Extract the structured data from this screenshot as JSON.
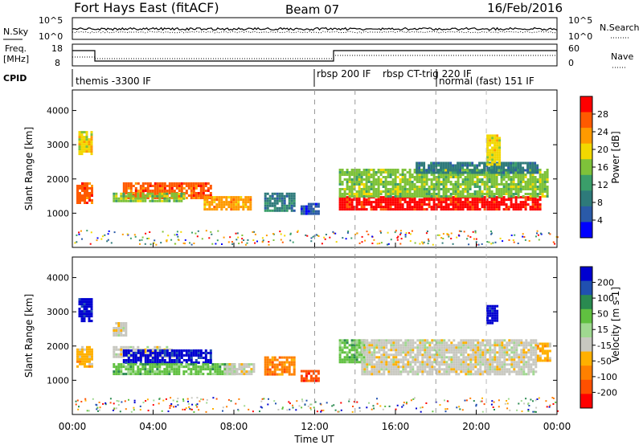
{
  "header": {
    "station": "Fort Hays East (fitACF)",
    "beam": "Beam 07",
    "date": "16/Feb/2016"
  },
  "panels": {
    "nsky": {
      "left_label": "N.Sky",
      "right_label": "N.Search",
      "tick_high": "10^5",
      "tick_low": "10^0"
    },
    "freq": {
      "left_label_1": "Freq.",
      "left_label_2": "[MHz]",
      "right_label": "Nave",
      "left_ticks": [
        "18",
        "8"
      ],
      "right_ticks": [
        "60",
        "0"
      ]
    },
    "cpid": {
      "label": "CPID",
      "segments": [
        {
          "text": "themis -3300 IF",
          "start": 0.0
        },
        {
          "text": "rbsp 200 IF",
          "start": 12.0
        },
        {
          "text": "rbsp CT-trig 220 IF",
          "start": 14.0
        },
        {
          "text": "normal (fast) 151 IF",
          "start": 18.0
        }
      ]
    }
  },
  "chart_data": [
    {
      "type": "heatmap",
      "name": "Power",
      "ylabel": "Slant Range [km]",
      "ylim": [
        0,
        4600
      ],
      "yticks": [
        1000,
        2000,
        3000,
        4000
      ],
      "xlim": [
        0,
        24
      ],
      "colorbar": {
        "label": "Power [dB]",
        "ticks": [
          "28",
          "24",
          "20",
          "16",
          "12",
          "8",
          "4"
        ],
        "colors": [
          "#ff0000",
          "#ff5a00",
          "#ff9a00",
          "#f2d800",
          "#7ec23a",
          "#3a9e6a",
          "#2e7a7a",
          "#2a5aa8",
          "#0000ff"
        ]
      },
      "bands": [
        {
          "x0": 0.2,
          "x1": 1.0,
          "y0": 1300,
          "y1": 1900,
          "level": 1
        },
        {
          "x0": 0.3,
          "x1": 0.9,
          "y0": 2700,
          "y1": 3400,
          "level": 3
        },
        {
          "x0": 2.5,
          "x1": 6.8,
          "y0": 1450,
          "y1": 1900,
          "level": 1
        },
        {
          "x0": 2.0,
          "x1": 5.5,
          "y0": 1350,
          "y1": 1600,
          "level": 4
        },
        {
          "x0": 6.5,
          "x1": 8.8,
          "y0": 1100,
          "y1": 1500,
          "level": 2
        },
        {
          "x0": 9.5,
          "x1": 11.0,
          "y0": 1100,
          "y1": 1600,
          "level": 6
        },
        {
          "x0": 11.3,
          "x1": 12.2,
          "y0": 1000,
          "y1": 1300,
          "level": 7
        },
        {
          "x0": 13.2,
          "x1": 23.2,
          "y0": 1100,
          "y1": 1500,
          "level": 0
        },
        {
          "x0": 13.2,
          "x1": 23.5,
          "y0": 1500,
          "y1": 2300,
          "level": 4
        },
        {
          "x0": 17.0,
          "x1": 23.0,
          "y0": 2200,
          "y1": 2500,
          "level": 6
        },
        {
          "x0": 20.5,
          "x1": 21.2,
          "y0": 2400,
          "y1": 3300,
          "level": 3
        }
      ]
    },
    {
      "type": "heatmap",
      "name": "Velocity",
      "ylabel": "Slant Range [km]",
      "xlabel": "Time UT",
      "ylim": [
        0,
        4600
      ],
      "yticks": [
        1000,
        2000,
        3000,
        4000
      ],
      "xlim": [
        0,
        24
      ],
      "xticks": [
        "00:00",
        "04:00",
        "08:00",
        "12:00",
        "16:00",
        "20:00",
        "00:00"
      ],
      "colorbar": {
        "label": "Velocity [m s-1]",
        "ticks": [
          "200",
          "100",
          "50",
          "15",
          "-15",
          "-50",
          "-100",
          "-200"
        ],
        "colors": [
          "#0000d0",
          "#2050b0",
          "#2a8a50",
          "#60c040",
          "#a0d890",
          "#c8c8c0",
          "#ffb000",
          "#ff8000",
          "#ff5000",
          "#ff0000"
        ]
      },
      "bands": [
        {
          "x0": 0.2,
          "x1": 1.0,
          "y0": 1400,
          "y1": 2000,
          "level": 6
        },
        {
          "x0": 0.3,
          "x1": 0.9,
          "y0": 2700,
          "y1": 3400,
          "level": 0
        },
        {
          "x0": 2.0,
          "x1": 2.6,
          "y0": 2300,
          "y1": 2700,
          "level": 5
        },
        {
          "x0": 2.0,
          "x1": 5.0,
          "y0": 1650,
          "y1": 2000,
          "level": 5
        },
        {
          "x0": 2.5,
          "x1": 6.8,
          "y0": 1500,
          "y1": 1900,
          "level": 0
        },
        {
          "x0": 2.0,
          "x1": 8.0,
          "y0": 1200,
          "y1": 1500,
          "level": 3
        },
        {
          "x0": 7.5,
          "x1": 9.0,
          "y0": 1200,
          "y1": 1500,
          "level": 5
        },
        {
          "x0": 9.5,
          "x1": 11.0,
          "y0": 1200,
          "y1": 1700,
          "level": 7
        },
        {
          "x0": 11.3,
          "x1": 12.2,
          "y0": 1000,
          "y1": 1300,
          "level": 8
        },
        {
          "x0": 13.2,
          "x1": 14.5,
          "y0": 1500,
          "y1": 2200,
          "level": 3
        },
        {
          "x0": 14.3,
          "x1": 23.0,
          "y0": 1200,
          "y1": 2200,
          "level": 5
        },
        {
          "x0": 23.0,
          "x1": 23.6,
          "y0": 1600,
          "y1": 2100,
          "level": 6
        },
        {
          "x0": 20.5,
          "x1": 21.0,
          "y0": 2700,
          "y1": 3200,
          "level": 0
        }
      ]
    }
  ]
}
